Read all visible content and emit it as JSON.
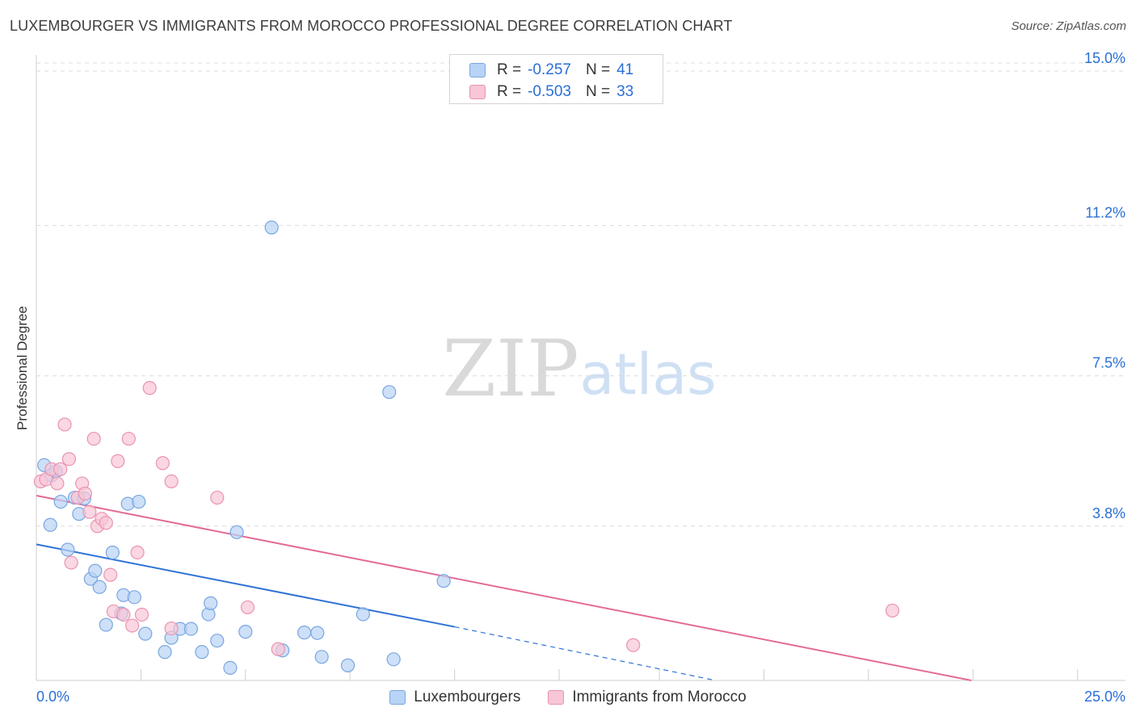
{
  "title": "LUXEMBOURGER VS IMMIGRANTS FROM MOROCCO PROFESSIONAL DEGREE CORRELATION CHART",
  "source": "Source: ZipAtlas.com",
  "watermark": {
    "zip": "ZIP",
    "atlas": "atlas"
  },
  "legend_top": [
    {
      "r_label": "R =",
      "r_value": "-0.257",
      "n_label": "N =",
      "n_value": "41"
    },
    {
      "r_label": "R =",
      "r_value": "-0.503",
      "n_label": "N =",
      "n_value": "33"
    }
  ],
  "colors": {
    "blue_fill": "#b8d3f5",
    "blue_stroke": "#7aa6e0",
    "blue_line": "#2f72d6",
    "pink_fill": "#f8c6d6",
    "pink_stroke": "#ea93b2",
    "pink_line": "#e36b96",
    "accent_text": "#2a6fd6"
  },
  "chart_data": {
    "type": "scatter",
    "title": "LUXEMBOURGER VS IMMIGRANTS FROM MOROCCO PROFESSIONAL DEGREE CORRELATION CHART",
    "xlabel": "",
    "ylabel": "Professional Degree",
    "xlim": [
      0,
      25
    ],
    "ylim": [
      0,
      15.4
    ],
    "x_tick_labels": [
      {
        "value": 0,
        "label": "0.0%"
      },
      {
        "value": 25,
        "label": "25.0%"
      }
    ],
    "y_ticks": [
      {
        "value": 3.8,
        "label": "3.8%"
      },
      {
        "value": 7.5,
        "label": "7.5%"
      },
      {
        "value": 11.2,
        "label": "11.2%"
      },
      {
        "value": 15.0,
        "label": "15.0%"
      }
    ],
    "x_minor_ticks": [
      2.4,
      4.8,
      7.2,
      9.6,
      12.0,
      14.3,
      16.7,
      19.1,
      21.5,
      23.9
    ],
    "grid": true,
    "series": [
      {
        "name": "Luxembourgers",
        "color": "#7aa6e0",
        "r": -0.257,
        "n": 41,
        "trend": {
          "x0": 0,
          "y0": 3.35,
          "x1": 9.6,
          "y1": 1.32,
          "dash_to_x": 15.5,
          "dash_to_y": 0.02
        },
        "points": [
          [
            0.18,
            5.3
          ],
          [
            0.35,
            5.05
          ],
          [
            0.45,
            5.15
          ],
          [
            0.32,
            3.83
          ],
          [
            0.56,
            4.4
          ],
          [
            0.72,
            3.22
          ],
          [
            0.88,
            4.5
          ],
          [
            0.98,
            4.1
          ],
          [
            1.1,
            4.48
          ],
          [
            1.25,
            2.5
          ],
          [
            1.35,
            2.7
          ],
          [
            1.45,
            2.3
          ],
          [
            1.6,
            1.37
          ],
          [
            1.75,
            3.15
          ],
          [
            1.95,
            1.65
          ],
          [
            2.0,
            2.1
          ],
          [
            2.25,
            2.05
          ],
          [
            2.1,
            4.35
          ],
          [
            2.35,
            4.4
          ],
          [
            2.5,
            1.15
          ],
          [
            2.95,
            0.7
          ],
          [
            3.1,
            1.05
          ],
          [
            3.3,
            1.27
          ],
          [
            3.55,
            1.27
          ],
          [
            3.8,
            0.7
          ],
          [
            3.95,
            1.63
          ],
          [
            4.0,
            1.9
          ],
          [
            4.15,
            0.98
          ],
          [
            4.45,
            0.31
          ],
          [
            4.6,
            3.65
          ],
          [
            4.8,
            1.2
          ],
          [
            5.4,
            11.15
          ],
          [
            5.65,
            0.74
          ],
          [
            6.15,
            1.18
          ],
          [
            6.45,
            1.17
          ],
          [
            6.55,
            0.58
          ],
          [
            7.15,
            0.37
          ],
          [
            7.5,
            1.63
          ],
          [
            8.1,
            7.1
          ],
          [
            8.2,
            0.52
          ],
          [
            9.35,
            2.45
          ]
        ]
      },
      {
        "name": "Immigrants from Morocco",
        "color": "#ea93b2",
        "r": -0.503,
        "n": 33,
        "trend": {
          "x0": 0,
          "y0": 4.55,
          "x1": 25,
          "y1": -0.75
        },
        "points": [
          [
            0.1,
            4.9
          ],
          [
            0.22,
            4.95
          ],
          [
            0.35,
            5.2
          ],
          [
            0.48,
            4.85
          ],
          [
            0.55,
            5.2
          ],
          [
            0.65,
            6.3
          ],
          [
            0.75,
            5.45
          ],
          [
            0.8,
            2.9
          ],
          [
            0.95,
            4.5
          ],
          [
            1.05,
            4.85
          ],
          [
            1.12,
            4.6
          ],
          [
            1.22,
            4.15
          ],
          [
            1.32,
            5.95
          ],
          [
            1.4,
            3.8
          ],
          [
            1.5,
            3.98
          ],
          [
            1.6,
            3.88
          ],
          [
            1.7,
            2.6
          ],
          [
            1.77,
            1.7
          ],
          [
            1.87,
            5.4
          ],
          [
            2.0,
            1.62
          ],
          [
            2.12,
            5.95
          ],
          [
            2.2,
            1.35
          ],
          [
            2.32,
            3.15
          ],
          [
            2.42,
            1.62
          ],
          [
            2.6,
            7.2
          ],
          [
            2.9,
            5.35
          ],
          [
            3.1,
            1.28
          ],
          [
            3.1,
            4.9
          ],
          [
            4.15,
            4.5
          ],
          [
            4.85,
            1.8
          ],
          [
            5.55,
            0.77
          ],
          [
            13.7,
            0.87
          ],
          [
            19.65,
            1.72
          ]
        ]
      }
    ]
  },
  "legend_bottom": [
    {
      "label": "Luxembourgers"
    },
    {
      "label": "Immigrants from Morocco"
    }
  ]
}
